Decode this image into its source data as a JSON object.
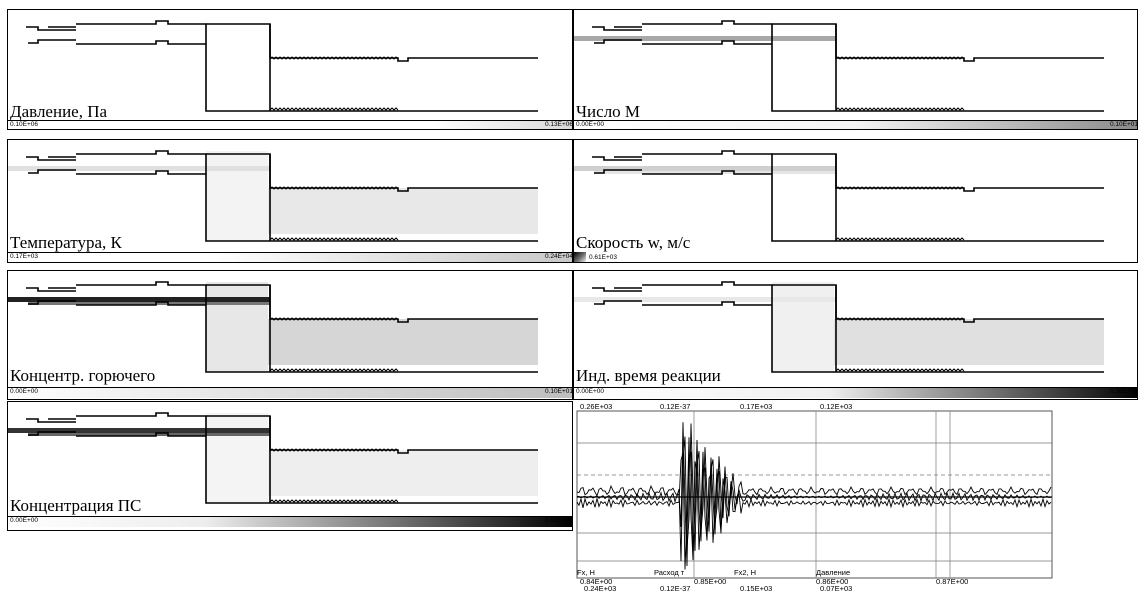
{
  "panels": [
    {
      "id": "pressure",
      "label": "Давление, Па",
      "min": "0.10E+06",
      "max": "0.13E+06"
    },
    {
      "id": "mach",
      "label": "Число М",
      "min": "0.00E+00",
      "max": "0.10E+01"
    },
    {
      "id": "temperature",
      "label": "Температура, К",
      "min": "0.17E+03",
      "max": "0.24E+04"
    },
    {
      "id": "velocity",
      "label": "Скорость w, м/с",
      "min": "0.61E+03",
      "max": ""
    },
    {
      "id": "fuel",
      "label": "Концентр. горючего",
      "min": "0.00E+00",
      "max": "0.10E+01"
    },
    {
      "id": "reaction",
      "label": "Инд. время реакции",
      "min": "0.00E+00",
      "max": "0.56E+00"
    },
    {
      "id": "products",
      "label": "Концентрация ПС",
      "min": "0.00E+00",
      "max": "0.92E+00"
    }
  ],
  "plot": {
    "header": [
      "0.26E+03",
      "0.12E-37",
      "0.17E+03",
      "0.12E+03"
    ],
    "legend": [
      "Fx, Н",
      "Расход т",
      "Fx2, Н",
      "Давление"
    ],
    "x_ticks": [
      "0.84E+00",
      "0.85E+00",
      "0.86E+00",
      "0.87E+00"
    ],
    "footer": [
      "0.24E+03",
      "0.12E-37",
      "0.15E+03",
      "0.07E+03"
    ]
  }
}
